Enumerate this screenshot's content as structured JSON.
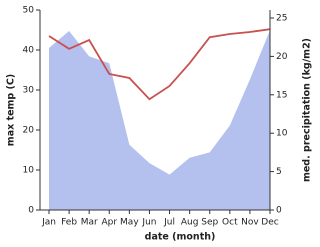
{
  "chart_data": {
    "type": "line",
    "categories": [
      "Jan",
      "Feb",
      "Mar",
      "Apr",
      "May",
      "Jun",
      "Jul",
      "Aug",
      "Sep",
      "Oct",
      "Nov",
      "Dec"
    ],
    "x_label": "date (month)",
    "y_label": "max temp (C)",
    "y2_label": "med. precipitation (kg/m2)",
    "ylim": [
      0,
      50
    ],
    "yticks": [
      0,
      10,
      20,
      30,
      40,
      50
    ],
    "y2lim": [
      0,
      25
    ],
    "y2ticks": [
      0,
      5,
      10,
      15,
      20,
      25
    ],
    "series": [
      {
        "color": "#c8504f",
        "values": [
          43.5,
          40.3,
          42.5,
          34,
          33,
          27.7,
          31,
          36.7,
          43.2,
          44,
          44.5,
          45.2
        ]
      },
      {
        "color": "#b4c0ee",
        "axis": "y2",
        "fill": true,
        "values": [
          21.1,
          23.3,
          20,
          19.1,
          8.5,
          6.1,
          4.6,
          6.8,
          7.5,
          11,
          17,
          23.4
        ]
      }
    ]
  }
}
